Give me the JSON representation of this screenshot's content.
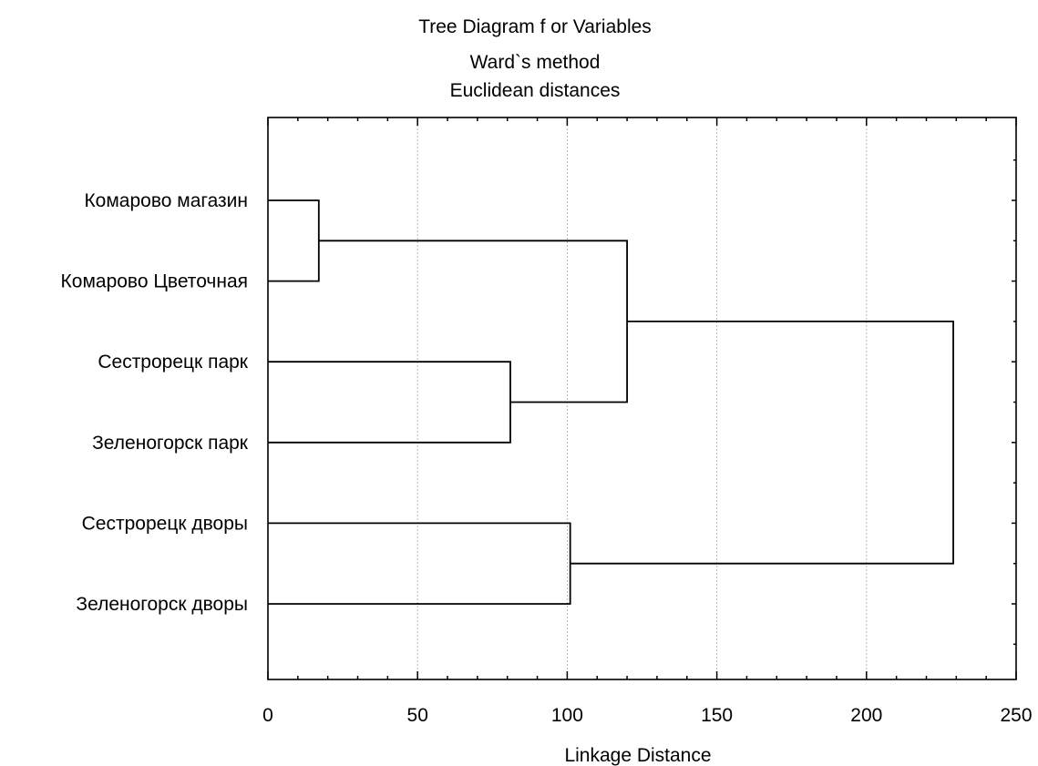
{
  "chart_data": {
    "type": "dendrogram",
    "title": "Tree Diagram f or  Variables",
    "subtitle_lines": [
      "Ward`s method",
      "Euclidean distances"
    ],
    "xlabel": "Linkage Distance",
    "xlim": [
      0,
      250
    ],
    "x_ticks": [
      0,
      50,
      100,
      150,
      200,
      250
    ],
    "grid": true,
    "leaves": [
      "Комарово магазин",
      "Комарово Цветочная",
      "Сестрорецк парк",
      "Зеленогорск парк",
      "Сестрорецк дворы",
      "Зеленогорск дворы"
    ],
    "merges": [
      {
        "id": 6,
        "left": 0,
        "right": 1,
        "distance": 17
      },
      {
        "id": 7,
        "left": 2,
        "right": 3,
        "distance": 81
      },
      {
        "id": 8,
        "left": 4,
        "right": 5,
        "distance": 101
      },
      {
        "id": 9,
        "left": 6,
        "right": 7,
        "distance": 120
      },
      {
        "id": 10,
        "left": 9,
        "right": 8,
        "distance": 229
      }
    ]
  }
}
